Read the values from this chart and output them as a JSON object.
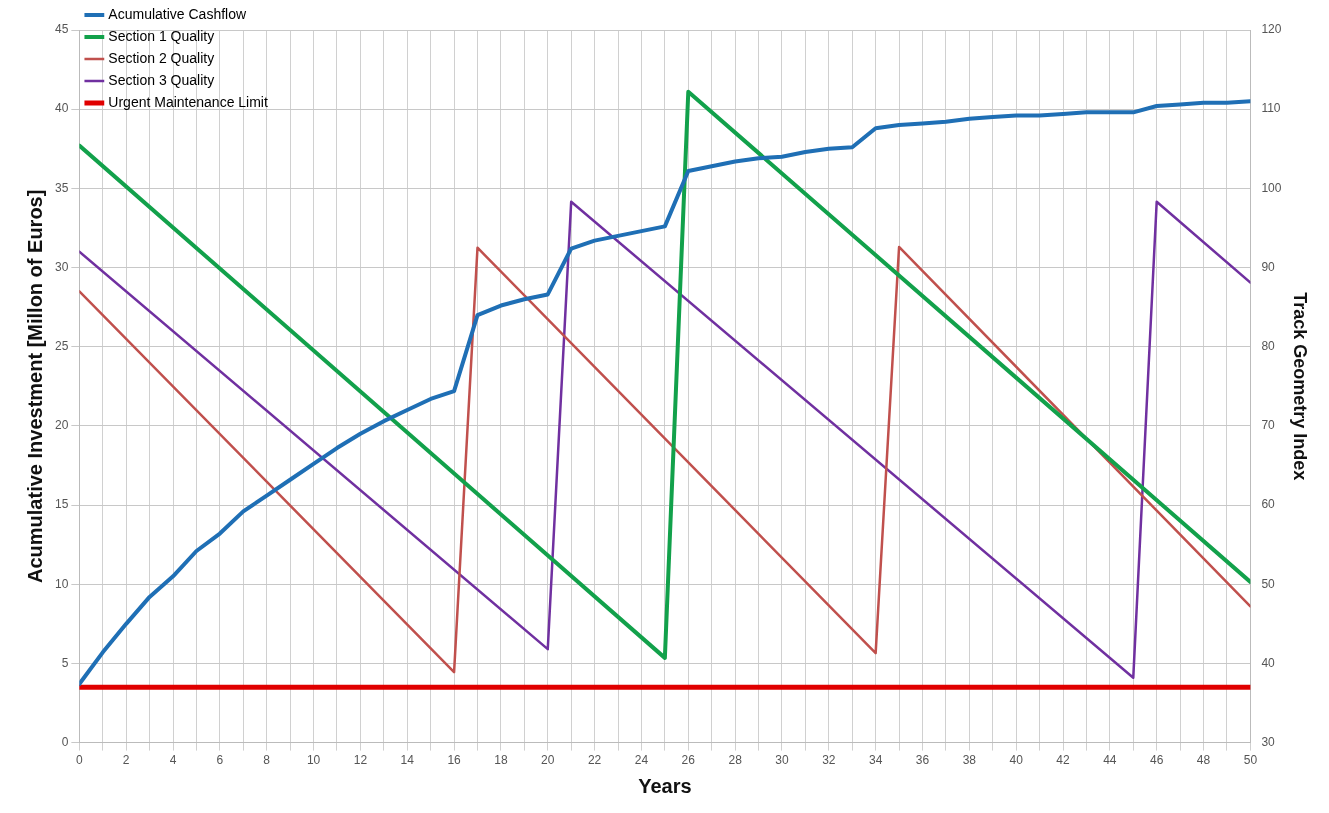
{
  "chart_data": {
    "type": "line",
    "xlabel": "Years",
    "ylabel": "Acumulative Investment [Millon of Euros]",
    "y2label": "Track Geometry Index",
    "xlim": [
      0,
      50
    ],
    "xticks": [
      0,
      {
        "value": 1,
        "label": null
      },
      2,
      {
        "value": 3,
        "label": null
      },
      4,
      {
        "value": 5,
        "label": null
      },
      6,
      {
        "value": 7,
        "label": null
      },
      8,
      {
        "value": 9,
        "label": null
      },
      10,
      {
        "value": 11,
        "label": null
      },
      12,
      {
        "value": 13,
        "label": null
      },
      14,
      {
        "value": 15,
        "label": null
      },
      16,
      {
        "value": 17,
        "label": null
      },
      18,
      {
        "value": 19,
        "label": null
      },
      20,
      {
        "value": 21,
        "label": null
      },
      22,
      {
        "value": 23,
        "label": null
      },
      24,
      {
        "value": 25,
        "label": null
      },
      26,
      {
        "value": 27,
        "label": null
      },
      28,
      {
        "value": 29,
        "label": null
      },
      30,
      {
        "value": 31,
        "label": null
      },
      32,
      {
        "value": 33,
        "label": null
      },
      34,
      {
        "value": 35,
        "label": null
      },
      36,
      {
        "value": 37,
        "label": null
      },
      38,
      {
        "value": 39,
        "label": null
      },
      40,
      {
        "value": 41,
        "label": null
      },
      42,
      {
        "value": 43,
        "label": null
      },
      44,
      {
        "value": 45,
        "label": null
      },
      46,
      {
        "value": 47,
        "label": null
      },
      48,
      {
        "value": 49,
        "label": null
      },
      50
    ],
    "ylim": [
      0,
      45
    ],
    "yticks": [
      0,
      5,
      10,
      15,
      20,
      25,
      30,
      35,
      40,
      45
    ],
    "y2lim": [
      30,
      120
    ],
    "y2ticks": [
      30,
      40,
      50,
      60,
      70,
      80,
      90,
      100,
      110,
      120
    ],
    "grid": true,
    "legend": "top left",
    "marker": "none",
    "line_style": "solid",
    "series": [
      {
        "name": "Acumulative Cashflow",
        "color": "#1f6fb5",
        "x": [
          0,
          1,
          2,
          3,
          4,
          5,
          6,
          7,
          8,
          9,
          10,
          11,
          12,
          13,
          14,
          15,
          16,
          17,
          18,
          19,
          20,
          21,
          22,
          23,
          24,
          25,
          26,
          27,
          28,
          29,
          30,
          31,
          32,
          33,
          34,
          35,
          36,
          37,
          38,
          39,
          40,
          41,
          42,
          43,
          44,
          45,
          46,
          47,
          48,
          49,
          50
        ],
        "values": [
          3.7,
          5.7,
          7.5,
          9.2,
          10.5,
          12.1,
          13.2,
          14.6,
          15.6,
          16.6,
          17.6,
          18.6,
          19.5,
          20.3,
          21.0,
          21.7,
          22.2,
          27.0,
          27.6,
          28.0,
          28.3,
          31.2,
          31.7,
          32.0,
          32.3,
          32.6,
          36.1,
          36.4,
          36.7,
          36.9,
          37.0,
          37.3,
          37.5,
          37.6,
          38.8,
          39.0,
          39.1,
          39.2,
          39.4,
          39.5,
          39.6,
          39.6,
          39.7,
          39.8,
          39.8,
          39.8,
          40.2,
          40.3,
          40.4,
          40.4,
          40.5
        ]
      },
      {
        "name": "Section 1 Quality",
        "color": "#12a14b",
        "axis": "y2",
        "x": [
          0,
          25,
          26,
          50
        ],
        "values": [
          105.4,
          40.7,
          112.2,
          50.3
        ]
      },
      {
        "name": "Section 2 Quality",
        "color": "#c0504d",
        "axis": "y2",
        "x": [
          0,
          16,
          17,
          34,
          35,
          50
        ],
        "values": [
          87.0,
          38.9,
          92.5,
          41.3,
          92.6,
          47.2
        ]
      },
      {
        "name": "Section 3 Quality",
        "color": "#7030a0",
        "axis": "y2",
        "x": [
          0,
          20,
          21,
          45,
          46,
          50
        ],
        "values": [
          92.0,
          41.8,
          98.3,
          38.2,
          98.3,
          88.1
        ]
      },
      {
        "name": "Urgent Maintenance Limit",
        "color": "#e00000",
        "axis": "y2",
        "x": [
          0,
          50
        ],
        "values": [
          37,
          37
        ]
      }
    ]
  }
}
